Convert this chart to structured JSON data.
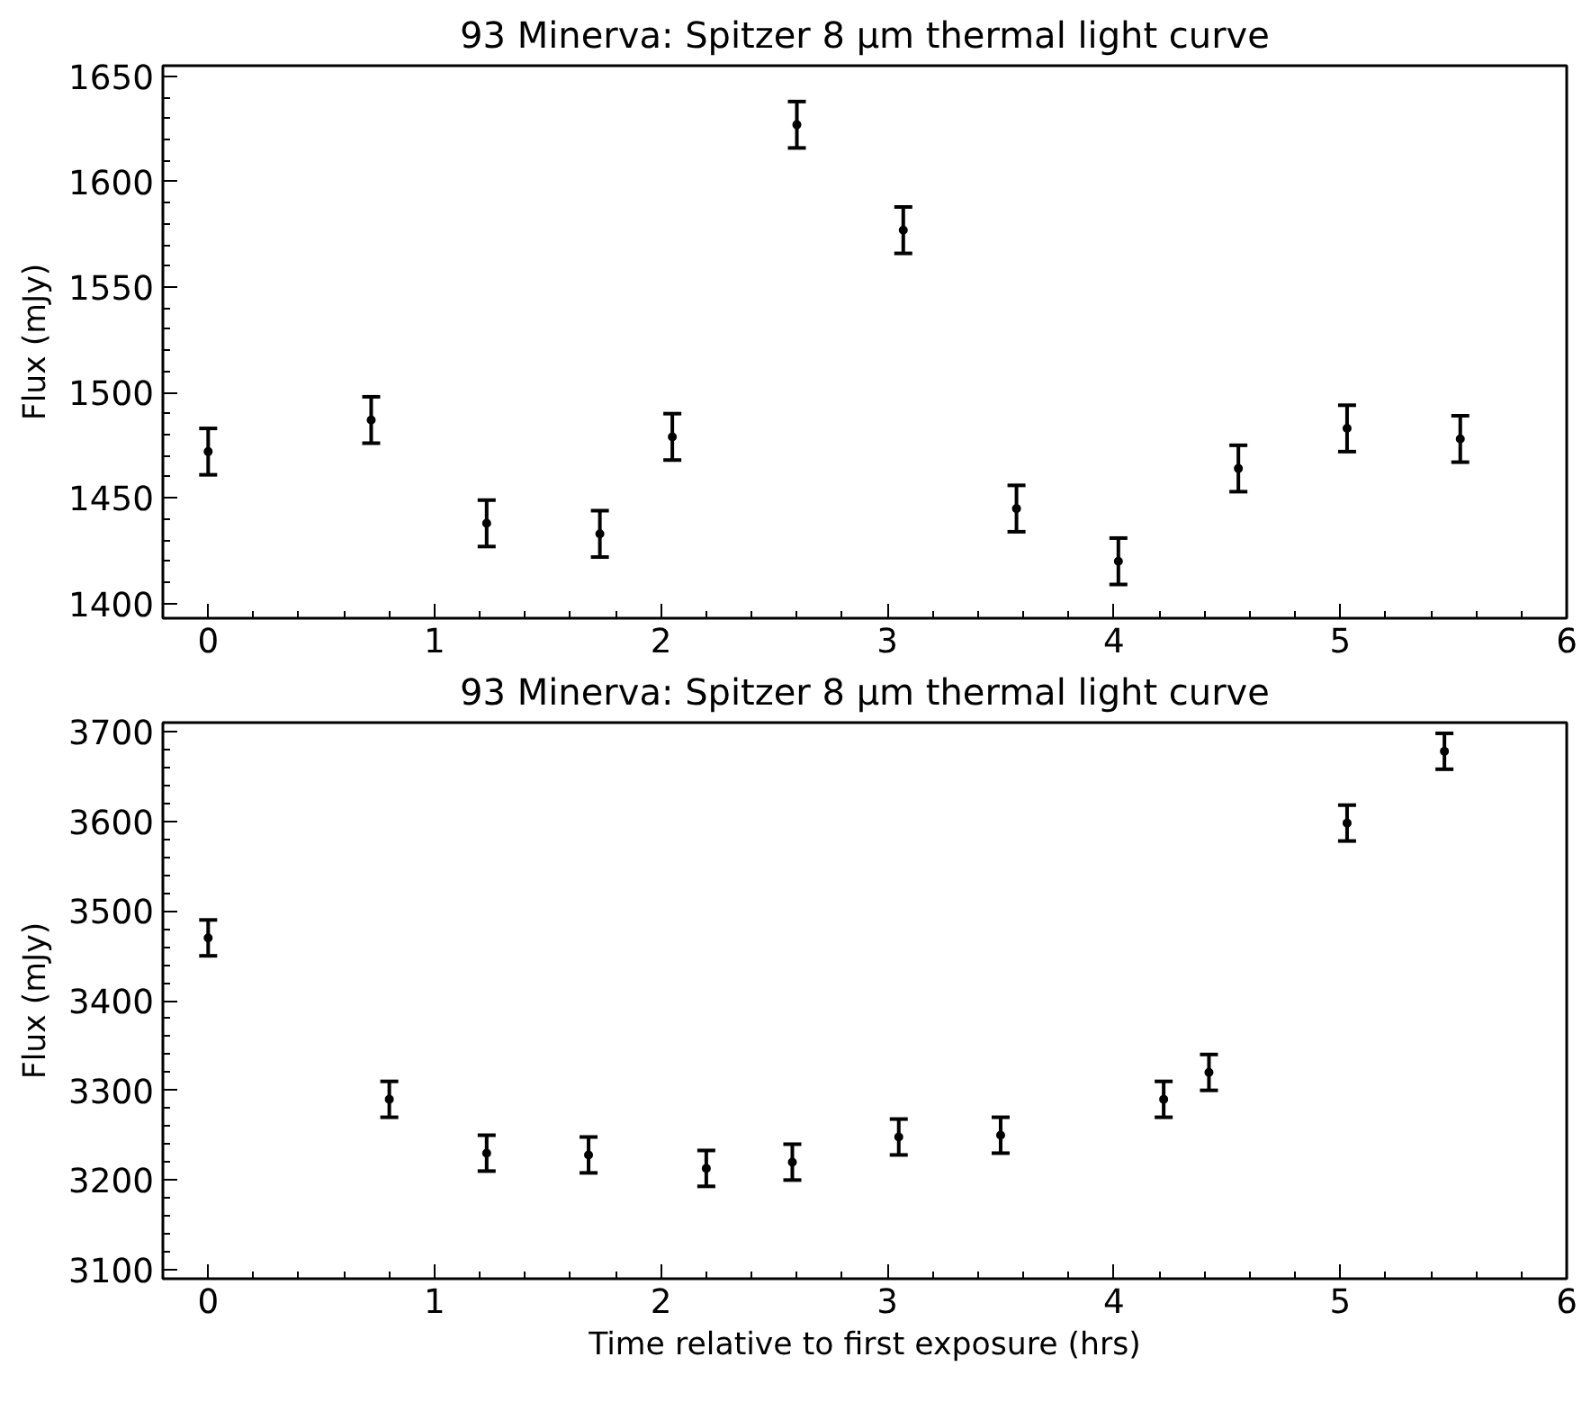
{
  "chart_data": [
    {
      "type": "scatter",
      "title": "93 Minerva: Spitzer 8 μm thermal light curve",
      "ylabel": "Flux (mJy)",
      "marker": "circle",
      "grid": false,
      "x": [
        0,
        0.72,
        1.23,
        1.73,
        2.05,
        2.6,
        3.07,
        3.57,
        4.02,
        4.55,
        5.03,
        5.53
      ],
      "series": [
        {
          "color": "#000000",
          "values": [
            1472,
            1487,
            1438,
            1433,
            1479,
            1627,
            1577,
            1445,
            1420,
            1464,
            1483,
            1478
          ],
          "errors": [
            11,
            11,
            11,
            11,
            11,
            11,
            11,
            11,
            11,
            11,
            11,
            11
          ]
        }
      ],
      "xlim": [
        -0.2,
        6
      ],
      "xticks": [
        0,
        1,
        2,
        3,
        4,
        5,
        6
      ],
      "ylim": [
        1393,
        1655
      ],
      "yticks": [
        1400,
        1450,
        1500,
        1550,
        1600,
        1650
      ]
    },
    {
      "type": "scatter",
      "title": "93 Minerva: Spitzer 8 μm thermal light curve",
      "xlabel": "Time relative to first exposure (hrs)",
      "ylabel": "Flux (mJy)",
      "marker": "circle",
      "grid": false,
      "x": [
        0,
        0.8,
        1.23,
        1.68,
        2.2,
        2.58,
        3.05,
        3.5,
        4.22,
        4.42,
        5.03,
        5.46
      ],
      "series": [
        {
          "color": "#000000",
          "values": [
            3470,
            3290,
            3230,
            3228,
            3213,
            3220,
            3248,
            3250,
            3290,
            3320,
            3598,
            3678
          ],
          "errors": [
            20,
            20,
            20,
            20,
            20,
            20,
            20,
            20,
            20,
            20,
            20,
            20
          ]
        }
      ],
      "xlim": [
        -0.2,
        6
      ],
      "xticks": [
        0,
        1,
        2,
        3,
        4,
        5,
        6
      ],
      "ylim": [
        3090,
        3710
      ],
      "yticks": [
        3100,
        3200,
        3300,
        3400,
        3500,
        3600,
        3700
      ]
    }
  ]
}
